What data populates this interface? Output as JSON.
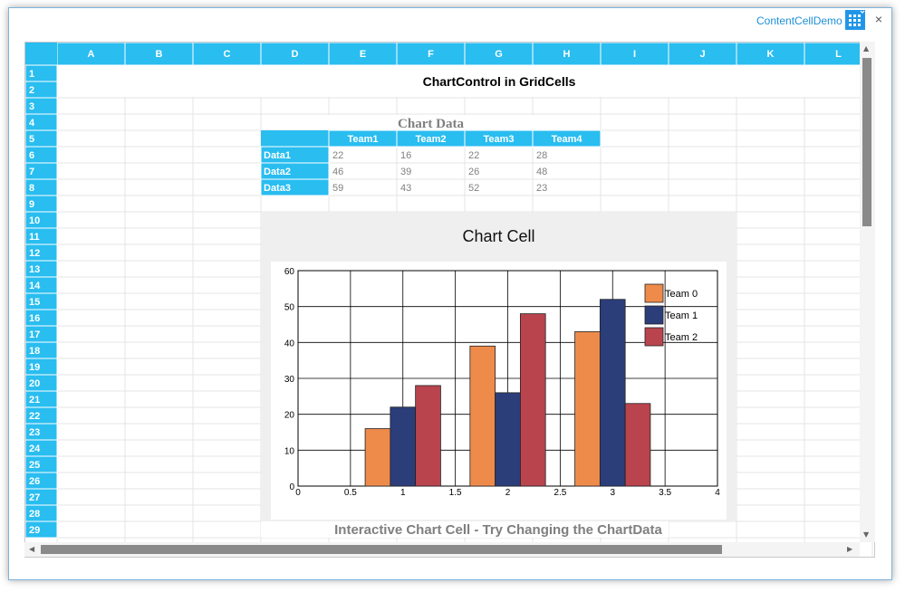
{
  "window": {
    "title": "ContentCellDemo",
    "icon": "grid-icon",
    "close_label": "×"
  },
  "grid": {
    "columns": [
      "A",
      "B",
      "C",
      "D",
      "E",
      "F",
      "G",
      "H",
      "I",
      "J",
      "K",
      "L"
    ],
    "rows": [
      "1",
      "2",
      "3",
      "4",
      "5",
      "6",
      "7",
      "8",
      "9",
      "10",
      "11",
      "12",
      "13",
      "14",
      "15",
      "16",
      "17",
      "18",
      "19",
      "20",
      "21",
      "22",
      "23",
      "24",
      "25",
      "26",
      "27",
      "28",
      "29"
    ],
    "header_color": "#29bdf0",
    "title_text": "ChartControl in GridCells",
    "data_table": {
      "heading": "Chart Data",
      "headers": [
        "Team1",
        "Team2",
        "Team3",
        "Team4"
      ],
      "rows": [
        {
          "label": "Data1",
          "values": [
            "22",
            "16",
            "22",
            "28"
          ]
        },
        {
          "label": "Data2",
          "values": [
            "46",
            "39",
            "26",
            "48"
          ]
        },
        {
          "label": "Data3",
          "values": [
            "59",
            "43",
            "52",
            "23"
          ]
        }
      ]
    },
    "footer_text": "Interactive Chart Cell - Try Changing the ChartData"
  },
  "chart_data": {
    "type": "bar",
    "title": "Chart Cell",
    "xlim": [
      0,
      4
    ],
    "ylim": [
      0,
      60
    ],
    "xticks": [
      "0",
      "0.5",
      "1",
      "1.5",
      "2",
      "2.5",
      "3",
      "3.5",
      "4"
    ],
    "yticks": [
      "0",
      "10",
      "20",
      "30",
      "40",
      "50",
      "60"
    ],
    "x": [
      1,
      2,
      3
    ],
    "series": [
      {
        "name": "Team 0",
        "color": "#ee8b4a",
        "values": [
          16,
          39,
          43
        ]
      },
      {
        "name": "Team 1",
        "color": "#2b3e7a",
        "values": [
          22,
          26,
          52
        ]
      },
      {
        "name": "Team 2",
        "color": "#b9444e",
        "values": [
          28,
          48,
          23
        ]
      }
    ],
    "grid": true,
    "legend": "top-right"
  }
}
